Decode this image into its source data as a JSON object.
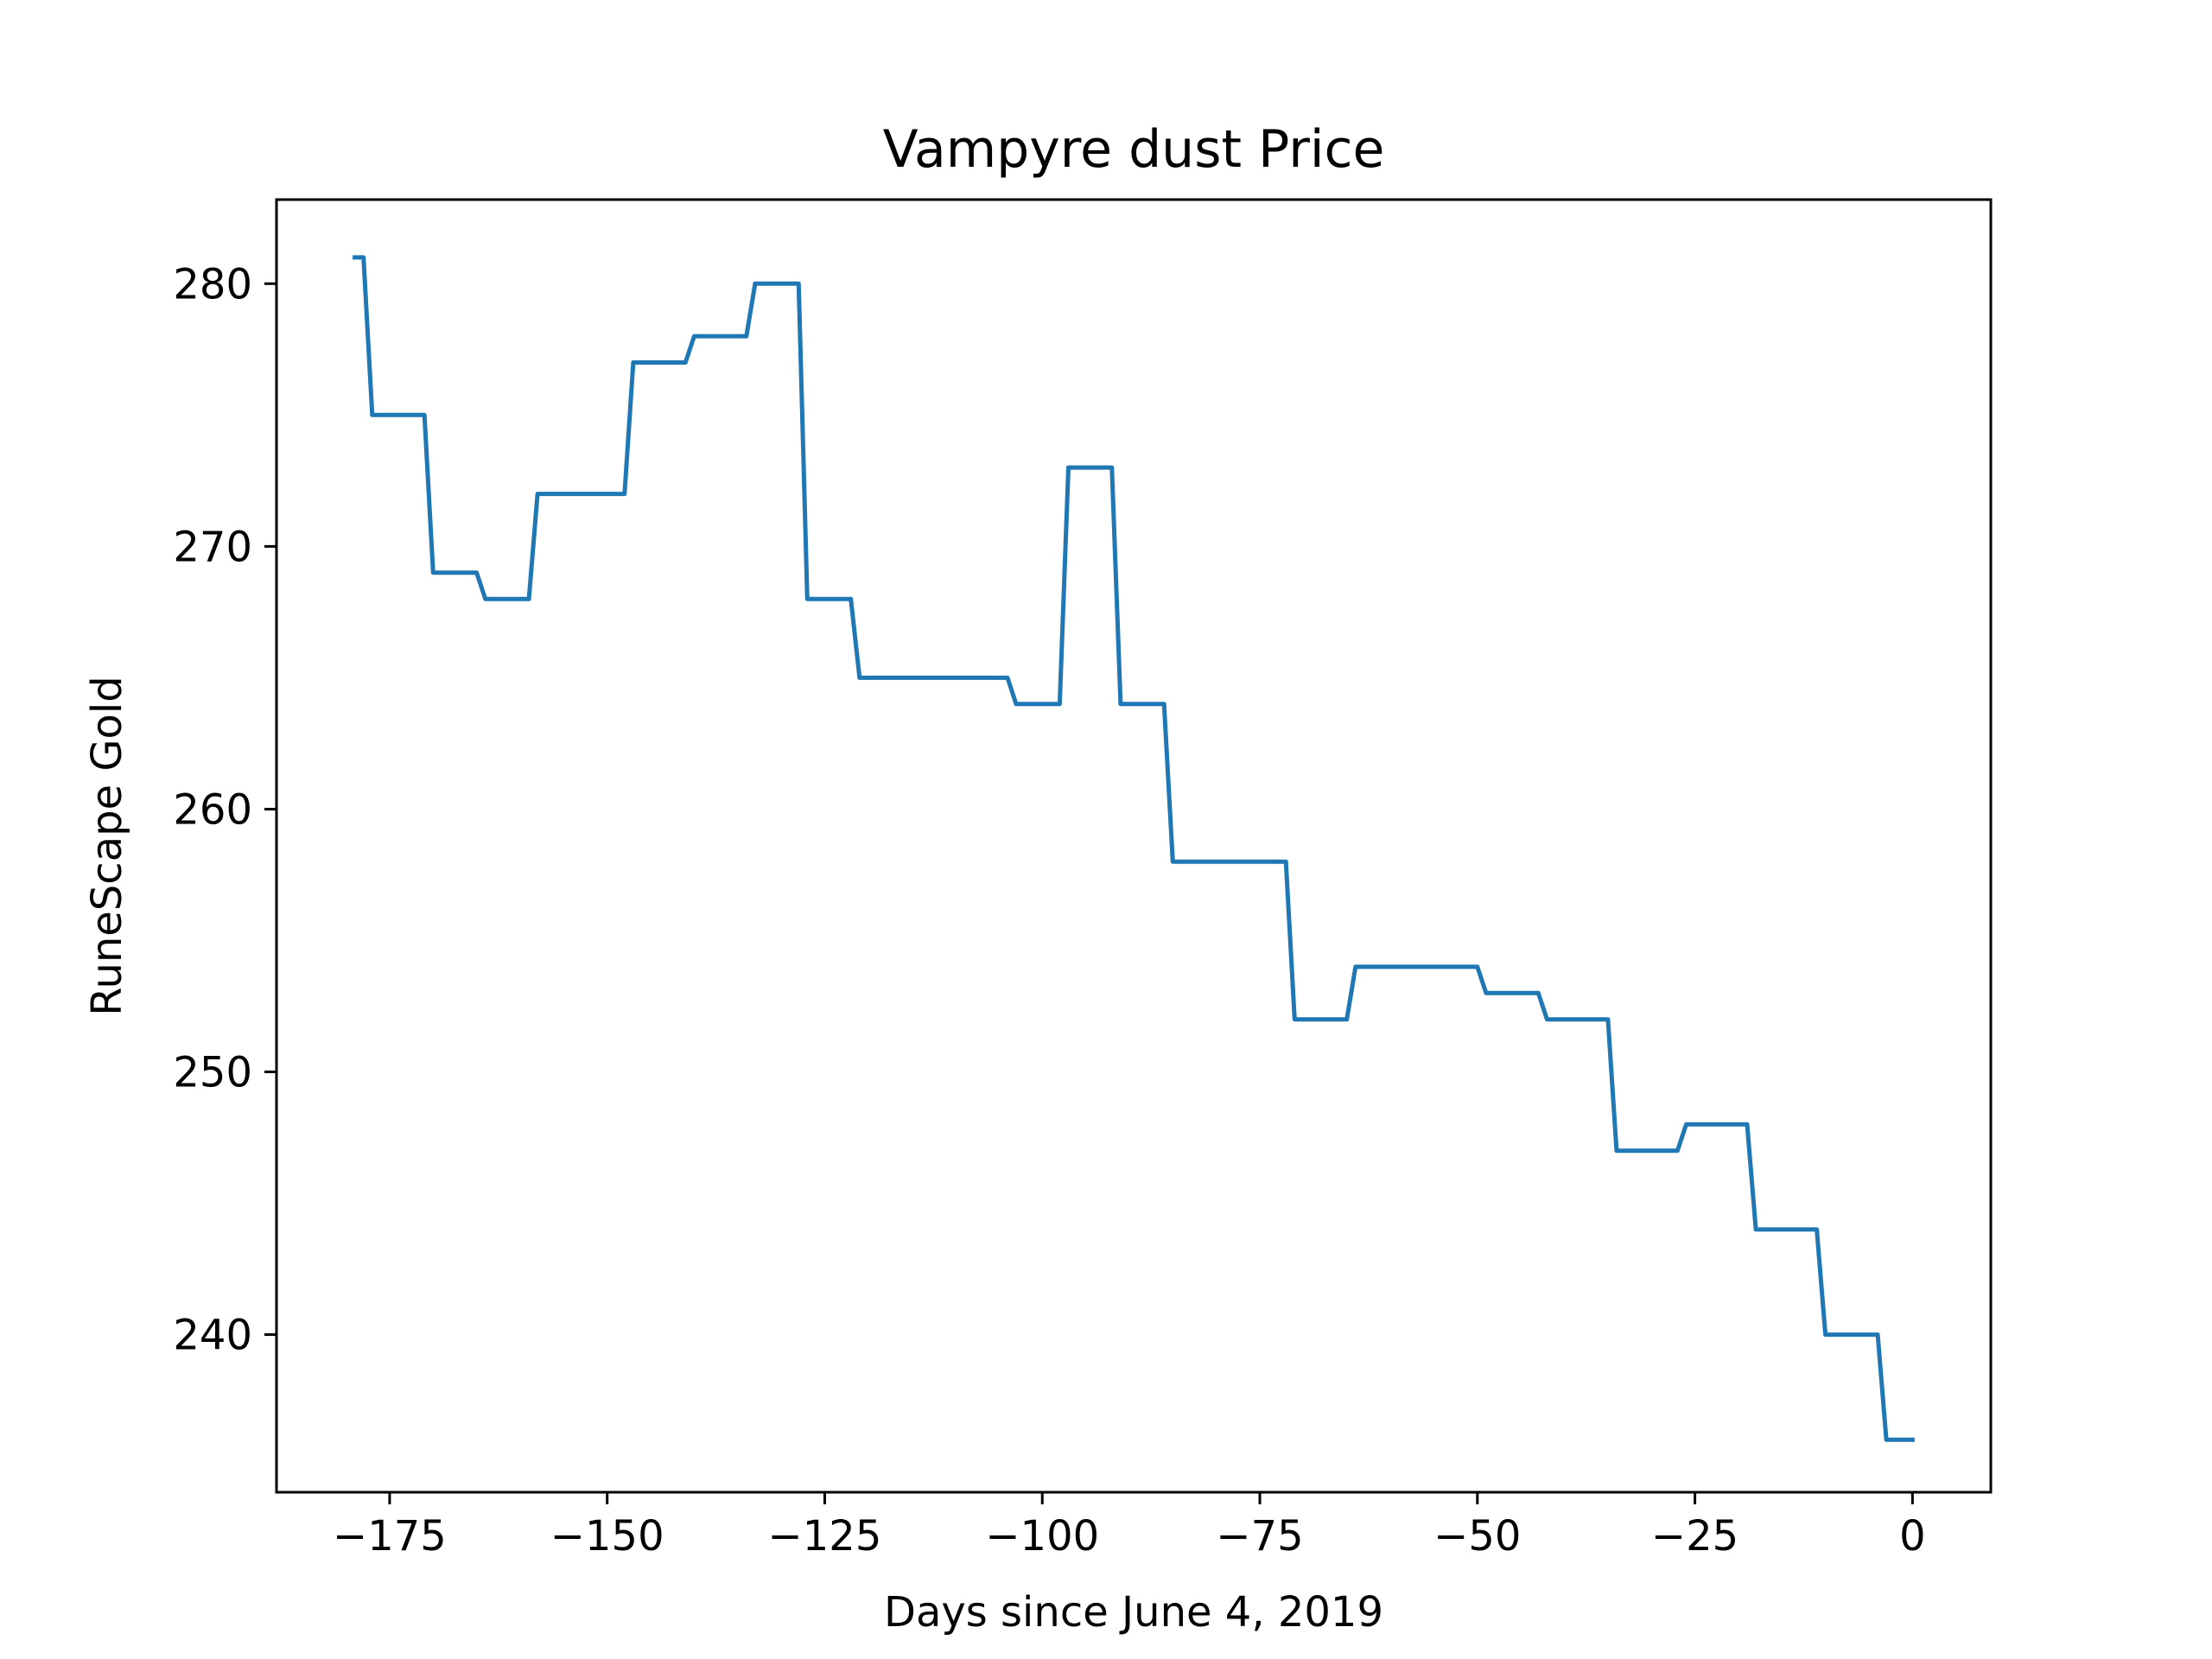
{
  "chart_data": {
    "type": "line",
    "title": "Vampyre dust Price",
    "xlabel": "Days since June 4, 2019",
    "ylabel": "RuneScape Gold",
    "xlim": [
      -188,
      9
    ],
    "ylim": [
      234,
      283.2
    ],
    "xticks": [
      -175,
      -150,
      -125,
      -100,
      -75,
      -50,
      -25,
      0
    ],
    "xtick_labels": [
      "−175",
      "−150",
      "−125",
      "−100",
      "−75",
      "−50",
      "−25",
      "0"
    ],
    "yticks": [
      240,
      250,
      260,
      270,
      280
    ],
    "ytick_labels": [
      "240",
      "250",
      "260",
      "270",
      "280"
    ],
    "grid": false,
    "legend": "none",
    "series": [
      {
        "color": "#1f77b4",
        "x": [
          -179,
          -178,
          -177,
          -171,
          -170,
          -165,
          -164,
          -159,
          -158,
          -148,
          -147,
          -141,
          -140,
          -134,
          -133,
          -128,
          -127,
          -122,
          -121,
          -104,
          -103,
          -98,
          -97,
          -92,
          -91,
          -86,
          -85,
          -72,
          -71,
          -65,
          -64,
          -50,
          -49,
          -43,
          -42,
          -35,
          -34,
          -27,
          -26,
          -19,
          -18,
          -11,
          -10,
          -4,
          -3,
          0
        ],
        "y": [
          281,
          281,
          275,
          275,
          269,
          269,
          268,
          268,
          272,
          272,
          277,
          277,
          278,
          278,
          280,
          280,
          268,
          268,
          265,
          265,
          264,
          264,
          273,
          273,
          264,
          264,
          258,
          258,
          252,
          252,
          254,
          254,
          253,
          253,
          252,
          252,
          247,
          247,
          248,
          248,
          244,
          244,
          240,
          240,
          236,
          236
        ]
      }
    ]
  }
}
